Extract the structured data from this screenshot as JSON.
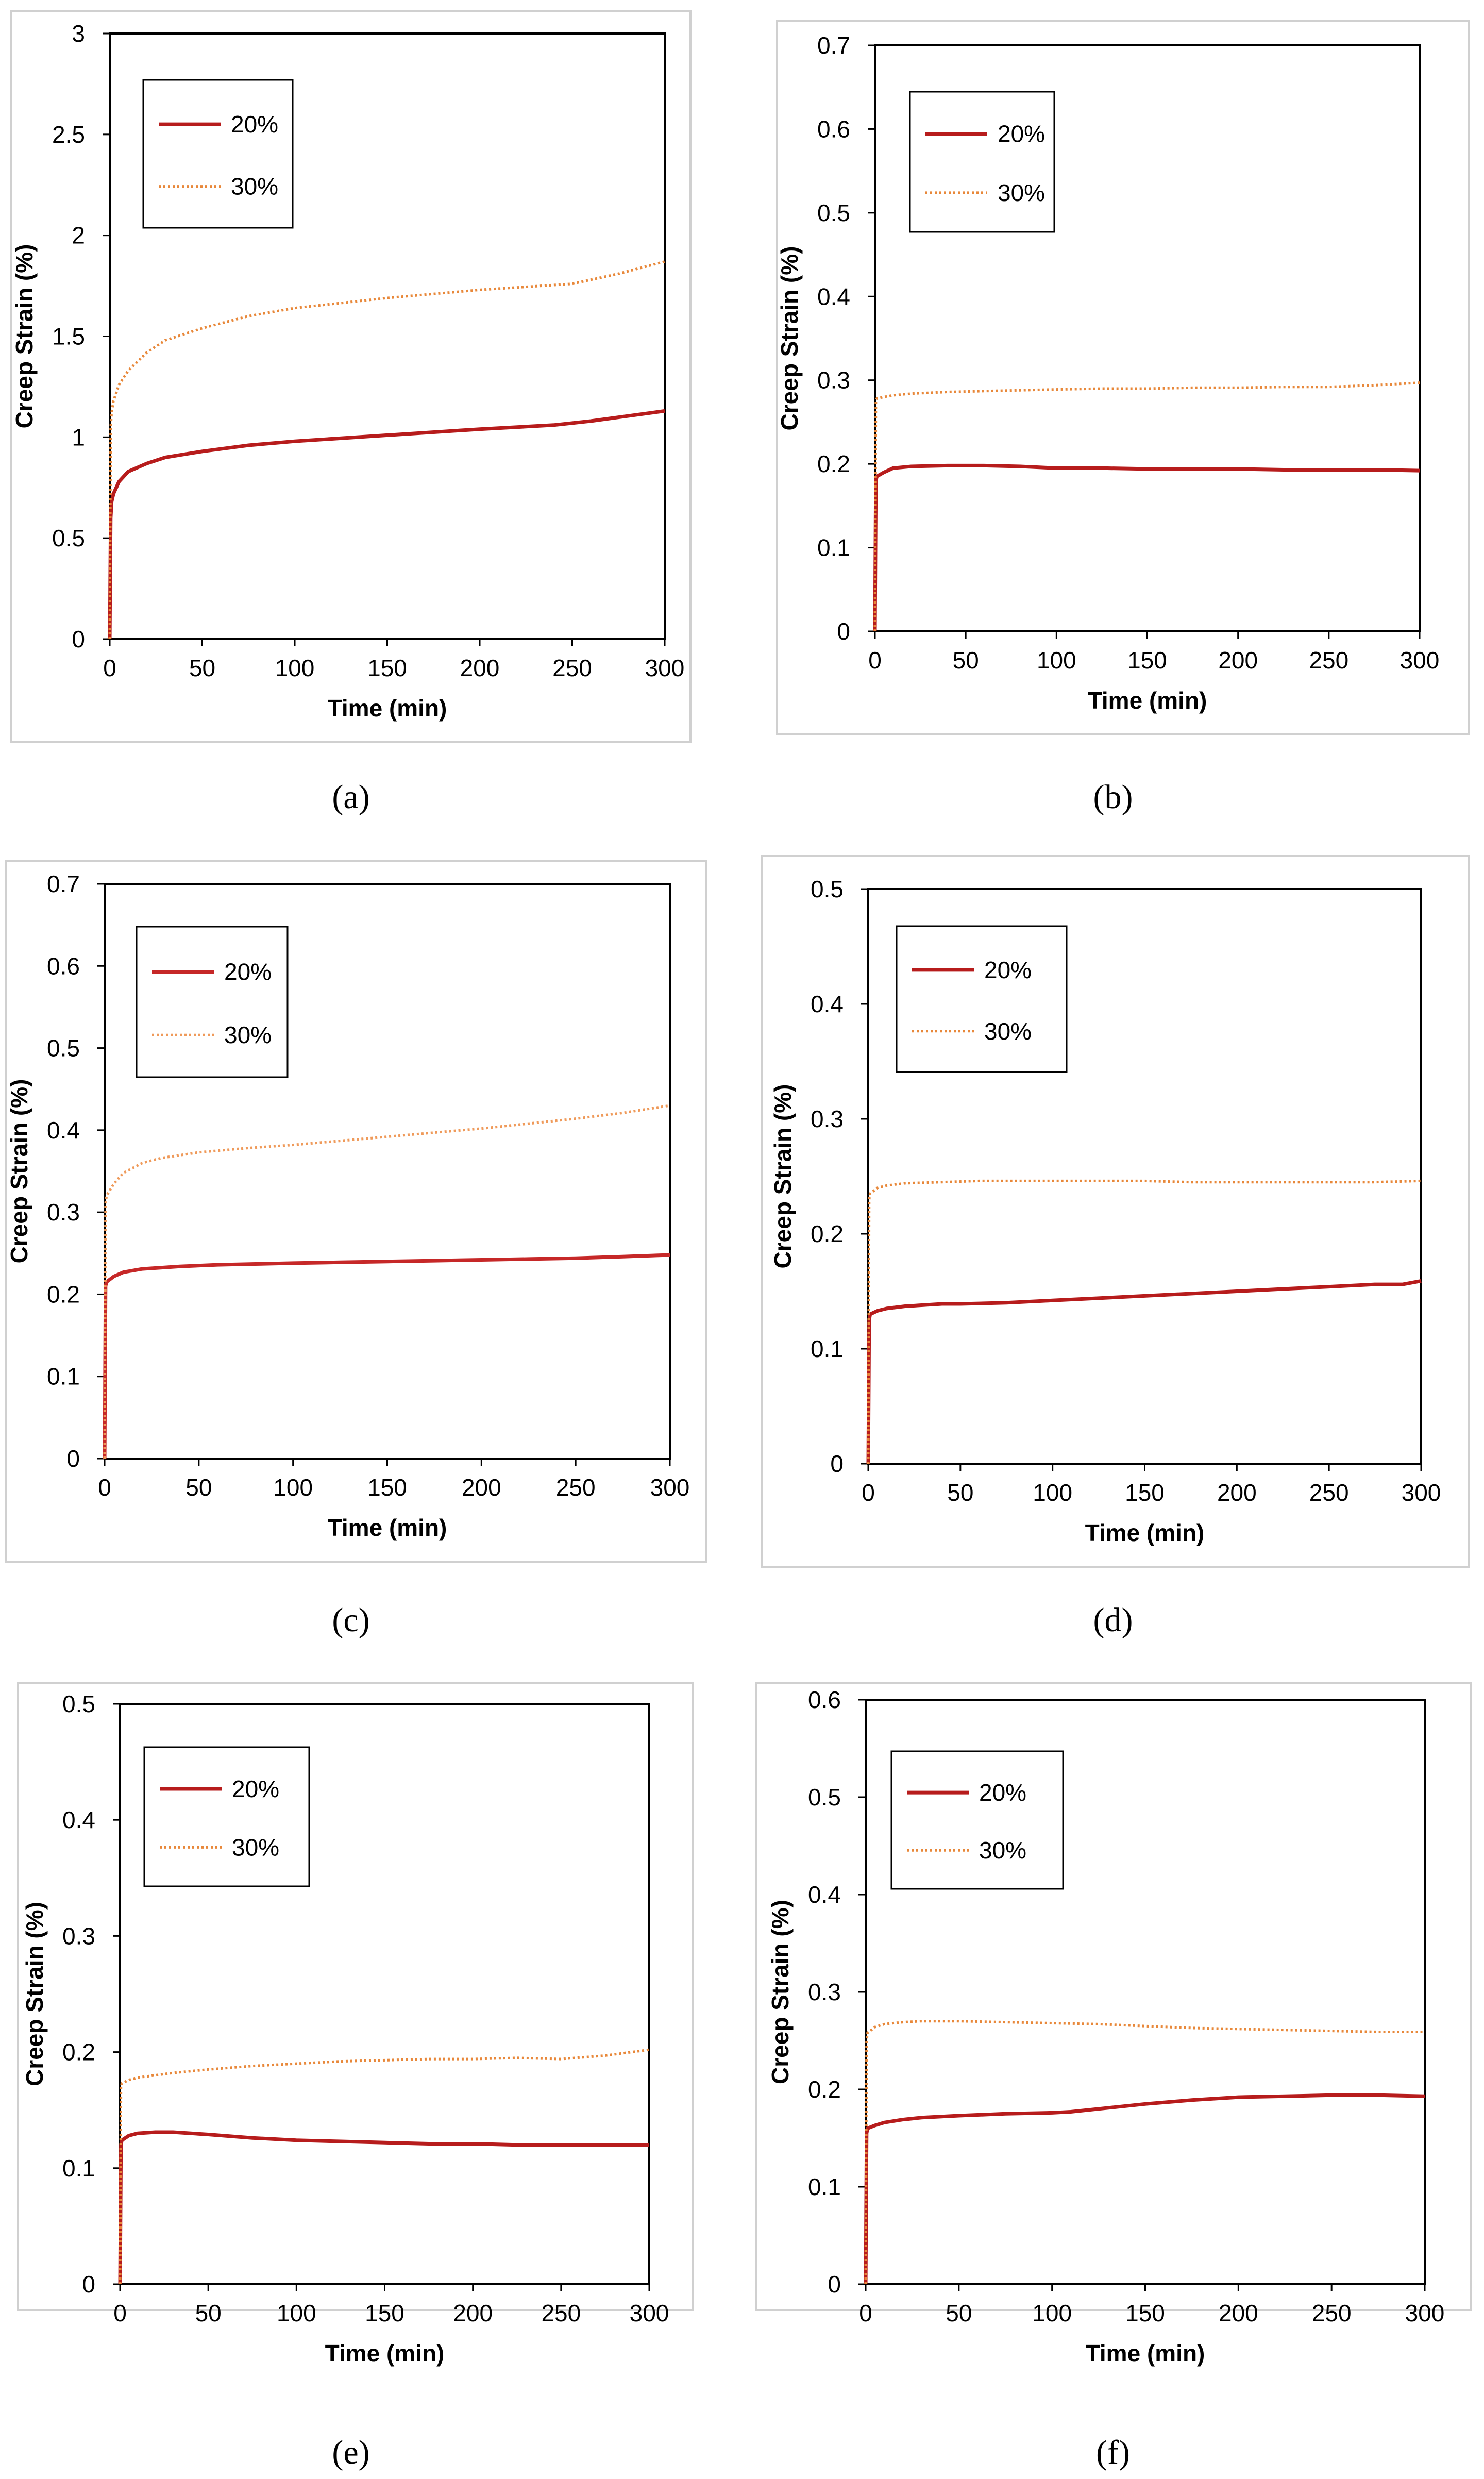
{
  "figure": {
    "captions": [
      "(a)",
      "(b)",
      "(c)",
      "(d)",
      "(e)",
      "(f)"
    ]
  },
  "chart_data": [
    {
      "panel": "a",
      "type": "line",
      "xlabel": "Time (min)",
      "ylabel": "Creep Strain (%)",
      "xlim": [
        0,
        300
      ],
      "ylim": [
        0,
        3
      ],
      "xticks": [
        0,
        50,
        100,
        150,
        200,
        250,
        300
      ],
      "yticks": [
        0,
        0.5,
        1,
        1.5,
        2,
        2.5,
        3
      ],
      "ytick_labels": [
        "0",
        "0.5",
        "1",
        "1.5",
        "2",
        "2.5",
        "3"
      ],
      "grid": false,
      "legend_position": "top-left",
      "series": [
        {
          "name": "20%",
          "color": "#b71c1c",
          "style": "solid",
          "x": [
            0,
            0.5,
            1,
            2,
            5,
            10,
            20,
            30,
            50,
            75,
            100,
            150,
            200,
            240,
            260,
            280,
            300
          ],
          "y": [
            0,
            0.6,
            0.68,
            0.72,
            0.78,
            0.83,
            0.87,
            0.9,
            0.93,
            0.96,
            0.98,
            1.01,
            1.04,
            1.06,
            1.08,
            1.105,
            1.13
          ]
        },
        {
          "name": "30%",
          "color": "#e8883a",
          "style": "dotted",
          "x": [
            0,
            0.5,
            1,
            2,
            5,
            10,
            20,
            30,
            50,
            75,
            100,
            150,
            200,
            250,
            275,
            300
          ],
          "y": [
            0,
            1.05,
            1.12,
            1.18,
            1.26,
            1.33,
            1.42,
            1.48,
            1.54,
            1.6,
            1.64,
            1.69,
            1.73,
            1.76,
            1.81,
            1.87
          ]
        }
      ]
    },
    {
      "panel": "b",
      "type": "line",
      "xlabel": "Time (min)",
      "ylabel": "Creep Strain (%)",
      "xlim": [
        0,
        300
      ],
      "ylim": [
        0,
        0.7
      ],
      "xticks": [
        0,
        50,
        100,
        150,
        200,
        250,
        300
      ],
      "yticks": [
        0,
        0.1,
        0.2,
        0.3,
        0.4,
        0.5,
        0.6,
        0.7
      ],
      "ytick_labels": [
        "0",
        "0.1",
        "0.2",
        "0.3",
        "0.4",
        "0.5",
        "0.6",
        "0.7"
      ],
      "grid": false,
      "legend_position": "top-left",
      "series": [
        {
          "name": "20%",
          "color": "#b71c1c",
          "style": "solid",
          "x": [
            0,
            0.5,
            1,
            5,
            10,
            20,
            40,
            60,
            80,
            100,
            125,
            150,
            175,
            200,
            225,
            250,
            275,
            300
          ],
          "y": [
            0,
            0.18,
            0.185,
            0.19,
            0.195,
            0.197,
            0.198,
            0.198,
            0.197,
            0.195,
            0.195,
            0.194,
            0.194,
            0.194,
            0.193,
            0.193,
            0.193,
            0.192
          ]
        },
        {
          "name": "30%",
          "color": "#e8883a",
          "style": "dotted",
          "x": [
            0,
            0.5,
            1,
            5,
            10,
            20,
            40,
            60,
            80,
            100,
            125,
            150,
            175,
            200,
            225,
            250,
            275,
            300
          ],
          "y": [
            0,
            0.275,
            0.278,
            0.28,
            0.282,
            0.284,
            0.286,
            0.287,
            0.288,
            0.289,
            0.29,
            0.29,
            0.291,
            0.291,
            0.292,
            0.292,
            0.294,
            0.297
          ]
        }
      ]
    },
    {
      "panel": "c",
      "type": "line",
      "xlabel": "Time (min)",
      "ylabel": "Creep Strain (%)",
      "xlim": [
        0,
        300
      ],
      "ylim": [
        0,
        0.7
      ],
      "xticks": [
        0,
        50,
        100,
        150,
        200,
        250,
        300
      ],
      "yticks": [
        0,
        0.1,
        0.2,
        0.3,
        0.4,
        0.5,
        0.6,
        0.7
      ],
      "ytick_labels": [
        "0",
        "0.1",
        "0.2",
        "0.3",
        "0.4",
        "0.5",
        "0.6",
        "0.7"
      ],
      "grid": false,
      "legend_position": "top-left",
      "series": [
        {
          "name": "20%",
          "color": "#c62828",
          "style": "solid",
          "x": [
            0,
            0.5,
            1,
            5,
            10,
            20,
            40,
            60,
            80,
            100,
            125,
            150,
            175,
            200,
            225,
            250,
            275,
            300
          ],
          "y": [
            0,
            0.21,
            0.215,
            0.222,
            0.227,
            0.231,
            0.234,
            0.236,
            0.237,
            0.238,
            0.239,
            0.24,
            0.241,
            0.242,
            0.243,
            0.244,
            0.246,
            0.248
          ]
        },
        {
          "name": "30%",
          "color": "#ef9a5a",
          "style": "dotted",
          "x": [
            0,
            0.5,
            1,
            5,
            10,
            20,
            30,
            50,
            75,
            100,
            125,
            150,
            175,
            200,
            225,
            250,
            275,
            300
          ],
          "y": [
            0,
            0.31,
            0.32,
            0.335,
            0.348,
            0.36,
            0.366,
            0.373,
            0.378,
            0.382,
            0.387,
            0.392,
            0.397,
            0.402,
            0.408,
            0.414,
            0.421,
            0.43
          ]
        }
      ]
    },
    {
      "panel": "d",
      "type": "line",
      "xlabel": "Time (min)",
      "ylabel": "Creep Strain (%)",
      "xlim": [
        0,
        300
      ],
      "ylim": [
        0,
        0.5
      ],
      "xticks": [
        0,
        50,
        100,
        150,
        200,
        250,
        300
      ],
      "yticks": [
        0,
        0.1,
        0.2,
        0.3,
        0.4,
        0.5
      ],
      "ytick_labels": [
        "0",
        "0.1",
        "0.2",
        "0.3",
        "0.4",
        "0.5"
      ],
      "grid": false,
      "legend_position": "top-left",
      "series": [
        {
          "name": "20%",
          "color": "#b71c1c",
          "style": "solid",
          "x": [
            0,
            0.5,
            1,
            5,
            10,
            20,
            30,
            40,
            50,
            75,
            100,
            125,
            150,
            175,
            200,
            225,
            250,
            275,
            290,
            300
          ],
          "y": [
            0,
            0.125,
            0.13,
            0.133,
            0.135,
            0.137,
            0.138,
            0.139,
            0.139,
            0.14,
            0.142,
            0.144,
            0.146,
            0.148,
            0.15,
            0.152,
            0.154,
            0.156,
            0.156,
            0.159
          ]
        },
        {
          "name": "30%",
          "color": "#e8883a",
          "style": "dotted",
          "x": [
            0,
            0.5,
            1,
            5,
            10,
            20,
            40,
            60,
            80,
            100,
            125,
            150,
            175,
            200,
            225,
            250,
            275,
            300
          ],
          "y": [
            0,
            0.23,
            0.235,
            0.24,
            0.242,
            0.244,
            0.245,
            0.246,
            0.246,
            0.246,
            0.246,
            0.246,
            0.245,
            0.245,
            0.245,
            0.245,
            0.245,
            0.246
          ]
        }
      ]
    },
    {
      "panel": "e",
      "type": "line",
      "xlabel": "Time (min)",
      "ylabel": "Creep Strain (%)",
      "xlim": [
        0,
        300
      ],
      "ylim": [
        0,
        0.5
      ],
      "xticks": [
        0,
        50,
        100,
        150,
        200,
        250,
        300
      ],
      "yticks": [
        0,
        0.1,
        0.2,
        0.3,
        0.4,
        0.5
      ],
      "ytick_labels": [
        "0",
        "0.1",
        "0.2",
        "0.3",
        "0.4",
        "0.5"
      ],
      "grid": false,
      "legend_position": "top-left",
      "series": [
        {
          "name": "20%",
          "color": "#b71c1c",
          "style": "solid",
          "x": [
            0,
            0.5,
            1,
            5,
            10,
            20,
            30,
            50,
            75,
            100,
            125,
            150,
            175,
            200,
            225,
            250,
            275,
            300
          ],
          "y": [
            0,
            0.12,
            0.124,
            0.128,
            0.13,
            0.131,
            0.131,
            0.129,
            0.126,
            0.124,
            0.123,
            0.122,
            0.121,
            0.121,
            0.12,
            0.12,
            0.12,
            0.12
          ]
        },
        {
          "name": "30%",
          "color": "#e8883a",
          "style": "dotted",
          "x": [
            0,
            0.5,
            1,
            5,
            10,
            20,
            30,
            50,
            75,
            100,
            125,
            150,
            175,
            200,
            225,
            250,
            275,
            300
          ],
          "y": [
            0,
            0.17,
            0.173,
            0.176,
            0.178,
            0.18,
            0.182,
            0.185,
            0.188,
            0.19,
            0.192,
            0.193,
            0.194,
            0.194,
            0.195,
            0.194,
            0.197,
            0.202
          ]
        }
      ]
    },
    {
      "panel": "f",
      "type": "line",
      "xlabel": "Time (min)",
      "ylabel": "Creep Strain (%)",
      "xlim": [
        0,
        300
      ],
      "ylim": [
        0,
        0.6
      ],
      "xticks": [
        0,
        50,
        100,
        150,
        200,
        250,
        300
      ],
      "yticks": [
        0,
        0.1,
        0.2,
        0.3,
        0.4,
        0.5,
        0.6
      ],
      "ytick_labels": [
        "0",
        "0.1",
        "0.2",
        "0.3",
        "0.4",
        "0.5",
        "0.6"
      ],
      "grid": false,
      "legend_position": "top-left",
      "series": [
        {
          "name": "20%",
          "color": "#b71c1c",
          "style": "solid",
          "x": [
            0,
            0.5,
            1,
            5,
            10,
            20,
            30,
            50,
            75,
            100,
            110,
            125,
            150,
            175,
            200,
            225,
            250,
            275,
            300
          ],
          "y": [
            0,
            0.155,
            0.16,
            0.163,
            0.166,
            0.169,
            0.171,
            0.173,
            0.175,
            0.176,
            0.177,
            0.18,
            0.185,
            0.189,
            0.192,
            0.193,
            0.194,
            0.194,
            0.193
          ]
        },
        {
          "name": "30%",
          "color": "#e8883a",
          "style": "dotted",
          "x": [
            0,
            0.5,
            1,
            5,
            10,
            20,
            30,
            50,
            75,
            100,
            125,
            150,
            175,
            200,
            225,
            250,
            275,
            300
          ],
          "y": [
            0,
            0.25,
            0.258,
            0.264,
            0.267,
            0.269,
            0.27,
            0.27,
            0.269,
            0.268,
            0.267,
            0.265,
            0.263,
            0.262,
            0.261,
            0.26,
            0.259,
            0.259
          ]
        }
      ]
    }
  ]
}
